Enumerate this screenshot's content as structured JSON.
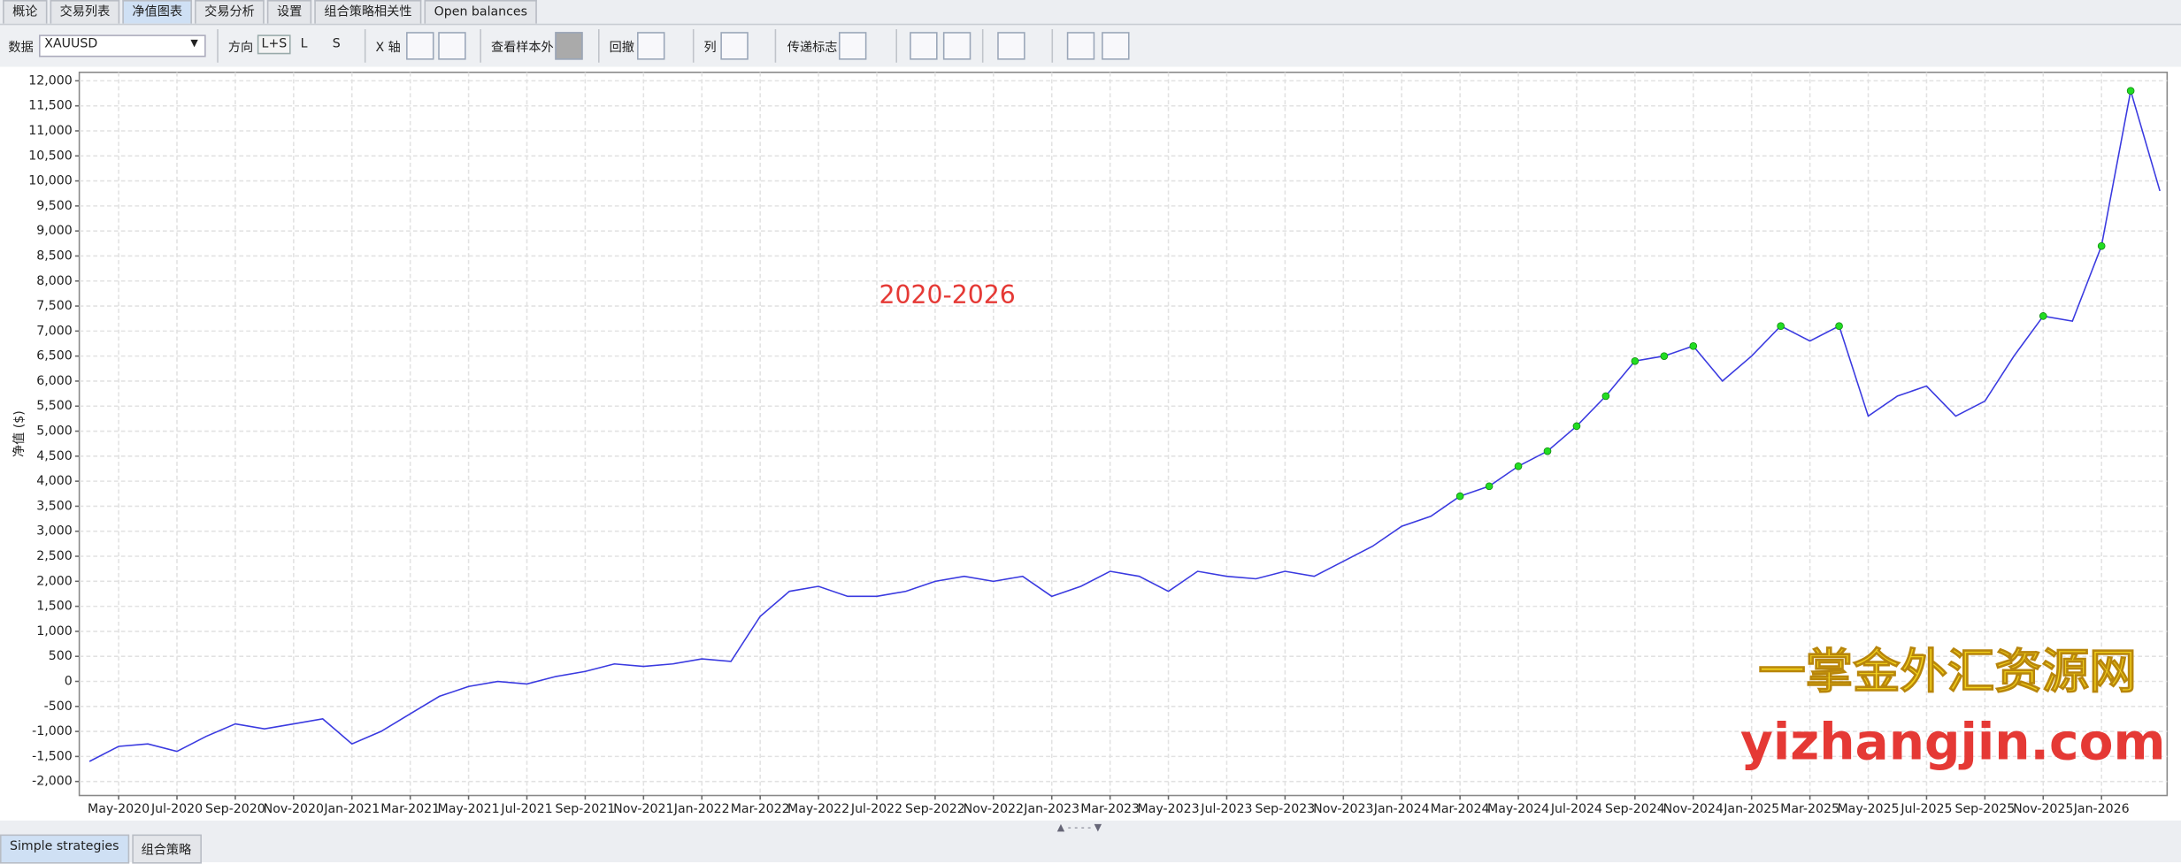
{
  "tabs": [
    "概论",
    "交易列表",
    "净值图表",
    "交易分析",
    "设置",
    "组合策略相关性",
    "Open balances"
  ],
  "toolbar": {
    "data_label": "数据",
    "symbol": "XAUUSD",
    "direction_label": "方向",
    "directions": [
      "L+S",
      "L",
      "S"
    ],
    "x_axis_label": "X 轴",
    "out_of_sample": "查看样本外",
    "drawdown": "回撤",
    "columns": "列",
    "pass_flag": "传递标志"
  },
  "chart_data": {
    "type": "line",
    "annotation": "2020-2026",
    "y_label": "净值 ($)",
    "categories": [
      null,
      "May-2020",
      null,
      "Jul-2020",
      null,
      "Sep-2020",
      null,
      "Nov-2020",
      null,
      "Jan-2021",
      null,
      "Mar-2021",
      null,
      "May-2021",
      null,
      "Jul-2021",
      null,
      "Sep-2021",
      null,
      "Nov-2021",
      null,
      "Jan-2022",
      null,
      "Mar-2022",
      null,
      "May-2022",
      null,
      "Jul-2022",
      null,
      "Sep-2022",
      null,
      "Nov-2022",
      null,
      "Jan-2023",
      null,
      "Mar-2023",
      null,
      "May-2023",
      null,
      "Jul-2023",
      null,
      "Sep-2023",
      null,
      "Nov-2023",
      null,
      "Jan-2024",
      null,
      "Mar-2024",
      null,
      "May-2024",
      null,
      "Jul-2024",
      null,
      "Sep-2024",
      null,
      "Nov-2024",
      null,
      "Jan-2025",
      null,
      "Mar-2025",
      null,
      "May-2025",
      null,
      "Jul-2025",
      null,
      "Sep-2025",
      null,
      "Nov-2025",
      null,
      "Jan-2026",
      null,
      null
    ],
    "series": [
      {
        "color": "#3a3ae0",
        "values": [
          -1600,
          -1300,
          -1250,
          -1400,
          -1100,
          -850,
          -950,
          -850,
          -750,
          -1250,
          -1000,
          -650,
          -300,
          -100,
          0,
          -50,
          100,
          200,
          350,
          300,
          350,
          450,
          400,
          1300,
          1800,
          1900,
          1700,
          1700,
          1800,
          2000,
          2100,
          2000,
          2100,
          1700,
          1900,
          2200,
          2100,
          1800,
          2200,
          2100,
          2050,
          2200,
          2100,
          2400,
          2700,
          3100,
          3300,
          3700,
          3900,
          4300,
          4600,
          5100,
          5700,
          6400,
          6500,
          6700,
          6000,
          6500,
          7100,
          6800,
          7100,
          5300,
          5700,
          5900,
          5300,
          5600,
          6500,
          7300,
          7200,
          8700,
          11800,
          9800
        ]
      },
      {
        "color": "#22dd22",
        "values": [
          null,
          null,
          null,
          null,
          null,
          null,
          null,
          null,
          null,
          null,
          null,
          null,
          null,
          null,
          null,
          null,
          null,
          null,
          null,
          null,
          null,
          null,
          null,
          null,
          null,
          null,
          null,
          null,
          null,
          null,
          null,
          null,
          null,
          null,
          null,
          null,
          null,
          null,
          null,
          null,
          null,
          null,
          null,
          null,
          null,
          null,
          null,
          3700,
          3900,
          4300,
          4600,
          5100,
          5700,
          6400,
          6500,
          6700,
          null,
          null,
          7100,
          null,
          7100,
          null,
          null,
          null,
          null,
          null,
          null,
          7300,
          null,
          8700,
          11800,
          null
        ]
      }
    ],
    "ylim": [
      -2280,
      12170
    ],
    "yticks": [
      {
        "value": -2000,
        "label": "-2,000"
      },
      {
        "value": -1500,
        "label": "-1,500"
      },
      {
        "value": -1000,
        "label": "-1,000"
      },
      -500,
      0,
      500,
      {
        "value": 1000,
        "label": "1,000"
      },
      {
        "value": 1500,
        "label": "1,500"
      },
      {
        "value": 2000,
        "label": "2,000"
      },
      {
        "value": 2500,
        "label": "2,500"
      },
      {
        "value": 3000,
        "label": "3,000"
      },
      {
        "value": 3500,
        "label": "3,500"
      },
      {
        "value": 4000,
        "label": "4,000"
      },
      {
        "value": 4500,
        "label": "4,500"
      },
      {
        "value": 5000,
        "label": "5,000"
      },
      {
        "value": 5500,
        "label": "5,500"
      },
      {
        "value": 6000,
        "label": "6,000"
      },
      {
        "value": 6500,
        "label": "6,500"
      },
      {
        "value": 7000,
        "label": "7,000"
      },
      {
        "value": 7500,
        "label": "7,500"
      },
      {
        "value": 8000,
        "label": "8,000"
      },
      {
        "value": 8500,
        "label": "8,500"
      },
      {
        "value": 9000,
        "label": "9,000"
      },
      {
        "value": 9500,
        "label": "9,500"
      },
      {
        "value": 10000,
        "label": "10,000"
      },
      {
        "value": 10500,
        "label": "10,500"
      },
      {
        "value": 11000,
        "label": "11,000"
      },
      {
        "value": 11500,
        "label": "11,500"
      },
      {
        "value": 12000,
        "label": "12,000"
      }
    ],
    "grid": true
  },
  "watermark": {
    "name": "一掌金外汇资源网",
    "url": "yizhangjin.com"
  },
  "bottom_tabs": [
    "Simple strategies",
    "组合策略"
  ]
}
